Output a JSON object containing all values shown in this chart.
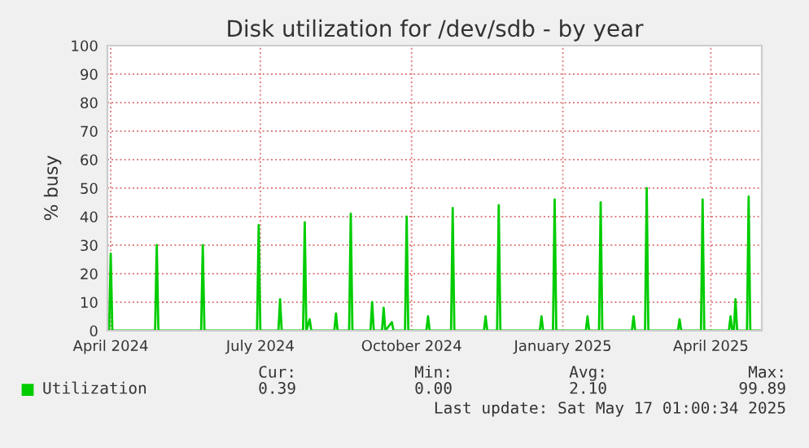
{
  "chart_data": {
    "type": "line",
    "title": "Disk utilization for /dev/sdb - by year",
    "ylabel": "% busy",
    "x": [
      "2024-03-30",
      "2024-03-31",
      "2024-04-01",
      "2024-04-02",
      "2024-04-28",
      "2024-04-29",
      "2024-04-30",
      "2024-05-26",
      "2024-05-27",
      "2024-05-28",
      "2024-06-29",
      "2024-06-30",
      "2024-07-01",
      "2024-07-12",
      "2024-07-13",
      "2024-07-14",
      "2024-07-27",
      "2024-07-28",
      "2024-07-29",
      "2024-07-31",
      "2024-08-01",
      "2024-08-15",
      "2024-08-16",
      "2024-08-17",
      "2024-08-24",
      "2024-08-25",
      "2024-08-26",
      "2024-09-06",
      "2024-09-07",
      "2024-09-08",
      "2024-09-13",
      "2024-09-14",
      "2024-09-15",
      "2024-09-19",
      "2024-09-20",
      "2024-09-27",
      "2024-09-28",
      "2024-09-29",
      "2024-10-10",
      "2024-10-11",
      "2024-10-12",
      "2024-10-25",
      "2024-10-26",
      "2024-10-27",
      "2024-11-14",
      "2024-11-15",
      "2024-11-16",
      "2024-11-22",
      "2024-11-23",
      "2024-11-24",
      "2024-12-18",
      "2024-12-19",
      "2024-12-20",
      "2024-12-26",
      "2024-12-27",
      "2024-12-28",
      "2025-01-15",
      "2025-01-16",
      "2025-01-17",
      "2025-01-23",
      "2025-01-24",
      "2025-01-25",
      "2025-02-12",
      "2025-02-13",
      "2025-02-14",
      "2025-02-20",
      "2025-02-21",
      "2025-02-22",
      "2025-03-12",
      "2025-03-13",
      "2025-03-14",
      "2025-03-26",
      "2025-03-27",
      "2025-03-28",
      "2025-04-12",
      "2025-04-13",
      "2025-04-14",
      "2025-04-15",
      "2025-04-16",
      "2025-04-17",
      "2025-04-23",
      "2025-04-24",
      "2025-04-25",
      "2025-05-01"
    ],
    "series": [
      {
        "name": "Utilization",
        "color": "#00cc00",
        "values": [
          0,
          0,
          27,
          0,
          0,
          30,
          0,
          0,
          30,
          0,
          0,
          37,
          0,
          0,
          11,
          0,
          0,
          38,
          0,
          4,
          0,
          0,
          6,
          0,
          0,
          41,
          0,
          0,
          10,
          0,
          0,
          8,
          0,
          3,
          0,
          0,
          40,
          0,
          0,
          5,
          0,
          0,
          43,
          0,
          0,
          5,
          0,
          0,
          44,
          0,
          0,
          5,
          0,
          0,
          46,
          0,
          0,
          5,
          0,
          0,
          45,
          0,
          0,
          5,
          0,
          0,
          50,
          0,
          0,
          4,
          0,
          0,
          46,
          0,
          0,
          5,
          0,
          0,
          11,
          0,
          0,
          47,
          0,
          0
        ]
      }
    ],
    "xlim": [
      "2024-03-30",
      "2025-05-02"
    ],
    "xticks": [
      {
        "value": "2024-04-01",
        "label": "April 2024"
      },
      {
        "value": "2024-07-01",
        "label": "July 2024"
      },
      {
        "value": "2024-10-01",
        "label": "October 2024"
      },
      {
        "value": "2025-01-01",
        "label": "January 2025"
      },
      {
        "value": "2025-04-01",
        "label": "April 2025"
      }
    ],
    "ylim": [
      0,
      100
    ],
    "yticks": [
      0,
      10,
      20,
      30,
      40,
      50,
      60,
      70,
      80,
      90,
      100
    ],
    "grid": true,
    "legend": "bottom",
    "marker": "none",
    "line_style": "solid",
    "annotations": [
      "Cur:",
      "Min:",
      "Avg:",
      "Max:",
      "0.39",
      "0.00",
      "2.10",
      "99.89",
      "Last update: Sat May 17 01:00:34 2025"
    ]
  }
}
